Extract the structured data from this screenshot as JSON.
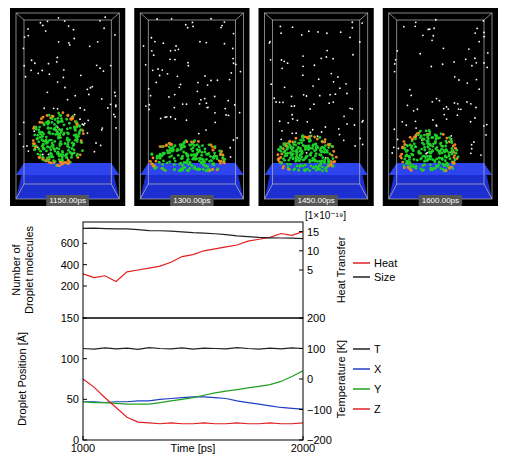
{
  "snapshots": {
    "labels": [
      "1150.00ps",
      "1300.00ps",
      "1450.00ps",
      "1600.00ps"
    ]
  },
  "chart_data": [
    {
      "type": "line",
      "annotation": "[1×10⁻¹⁹]",
      "y_label": "Number of Droplet molecules",
      "y2_label": "Heat Transfer",
      "xlim": [
        1000,
        2000
      ],
      "ylim": [
        -100,
        800
      ],
      "yticks": [
        200,
        400,
        600
      ],
      "y2lim": [
        -7.5,
        17.5
      ],
      "y2ticks": [
        5,
        10,
        15
      ],
      "tick_labels": "y",
      "grid": false,
      "legend": "right",
      "x": [
        1000,
        1050,
        1100,
        1150,
        1200,
        1250,
        1300,
        1350,
        1400,
        1450,
        1500,
        1550,
        1600,
        1650,
        1700,
        1750,
        1800,
        1850,
        1900,
        1950,
        2000
      ],
      "series": [
        {
          "name": "Heat",
          "color": "#e02020",
          "axis": "y2",
          "values": [
            4,
            3,
            3.5,
            2,
            4.5,
            5,
            5.5,
            6,
            7,
            8.5,
            9,
            10,
            10.5,
            11,
            11.5,
            12.5,
            13,
            13.5,
            14.5,
            14,
            15
          ]
        },
        {
          "name": "Size",
          "color": "#222222",
          "values": [
            740,
            742,
            738,
            736,
            735,
            728,
            720,
            718,
            715,
            708,
            700,
            696,
            690,
            682,
            670,
            662,
            655,
            652,
            650,
            648,
            645
          ]
        }
      ]
    },
    {
      "type": "line",
      "x_label": "Time [ps]",
      "y_label": "Droplet Position [Å]",
      "y2_label": "Temperature [K]",
      "xlim": [
        1000,
        2000
      ],
      "xticks": [
        1000,
        2000
      ],
      "ylim": [
        0,
        150
      ],
      "yticks": [
        0,
        50,
        100,
        150
      ],
      "y2lim": [
        -200,
        200
      ],
      "y2ticks": [
        {
          "value": -200,
          "label": "−200"
        },
        {
          "value": -100,
          "label": "−100"
        },
        0,
        100,
        200
      ],
      "grid": false,
      "legend": "right",
      "x": [
        1000,
        1050,
        1100,
        1150,
        1200,
        1250,
        1300,
        1350,
        1400,
        1450,
        1500,
        1550,
        1600,
        1650,
        1700,
        1750,
        1800,
        1850,
        1900,
        1950,
        2000
      ],
      "series": [
        {
          "name": "T",
          "color": "#222222",
          "axis": "y2",
          "values": [
            100,
            98,
            102,
            99,
            101,
            97,
            103,
            100,
            99,
            102,
            98,
            101,
            100,
            99,
            103,
            100,
            98,
            101,
            99,
            102,
            100
          ]
        },
        {
          "name": "X",
          "color": "#2040c0",
          "values": [
            47,
            47,
            46,
            47,
            47,
            48,
            48,
            50,
            51,
            52,
            53,
            53,
            52,
            51,
            48,
            46,
            44,
            42,
            40,
            39,
            38
          ]
        },
        {
          "name": "Y",
          "color": "#20a020",
          "values": [
            47,
            46,
            46,
            45,
            44,
            44,
            44,
            46,
            48,
            50,
            52,
            55,
            58,
            60,
            62,
            64,
            66,
            68,
            72,
            78,
            85
          ]
        },
        {
          "name": "Z",
          "color": "#e02020",
          "values": [
            75,
            65,
            52,
            40,
            28,
            22,
            21,
            20,
            21,
            20,
            20,
            21,
            20,
            20,
            21,
            20,
            20,
            21,
            20,
            20,
            21
          ]
        }
      ]
    }
  ]
}
